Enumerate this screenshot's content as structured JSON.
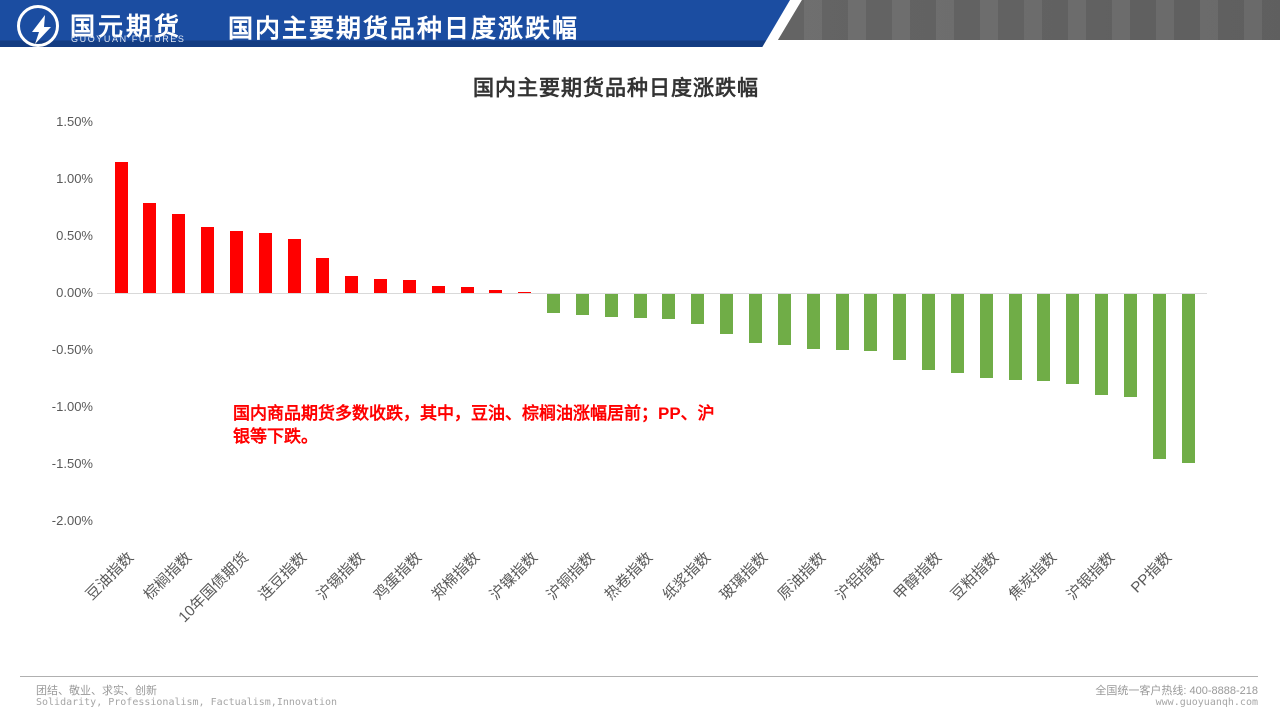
{
  "header": {
    "logo_cn": "国元期货",
    "logo_en": "GUOYUAN FUTURES",
    "bar_title": "国内主要期货品种日度涨跌幅",
    "blue": "#1b4da1",
    "gray": "#6e6e6e"
  },
  "chart_data": {
    "type": "bar",
    "title": "国内主要期货品种日度涨跌幅",
    "y_ticks": [
      "1.50%",
      "1.00%",
      "0.50%",
      "0.00%",
      "-0.50%",
      "-1.00%",
      "-1.50%",
      "-2.00%"
    ],
    "ylim": [
      -2.0,
      1.5
    ],
    "grid": "zero-line-only",
    "label_interval": 2,
    "categories": [
      "豆油指数",
      "棕榈指数",
      "10年国债期货",
      "连豆指数",
      "沪锡指数",
      "鸡蛋指数",
      "郑棉指数",
      "沪镍指数",
      "沪铜指数",
      "热卷指数",
      "纸浆指数",
      "玻璃指数",
      "原油指数",
      "沪铝指数",
      "甲醇指数",
      "豆粕指数",
      "焦炭指数",
      "沪银指数",
      "PP指数"
    ],
    "values_pct": [
      1.15,
      0.79,
      0.69,
      0.58,
      0.54,
      0.53,
      0.47,
      0.31,
      0.15,
      0.12,
      0.11,
      0.06,
      0.05,
      0.03,
      0.01,
      -0.17,
      -0.18,
      -0.2,
      -0.21,
      -0.22,
      -0.26,
      -0.35,
      -0.43,
      -0.45,
      -0.48,
      -0.49,
      -0.5,
      -0.58,
      -0.67,
      -0.69,
      -0.74,
      -0.75,
      -0.76,
      -0.79,
      -0.89,
      -0.9,
      -1.45,
      -1.48
    ],
    "positive_color": "#ff0000",
    "negative_color": "#70ad47"
  },
  "annotation": {
    "color": "#ff0000",
    "lines": [
      "国内商品期货多数收跌，其中，豆油、棕榈油涨幅居前；PP、沪",
      "银等下跌。"
    ]
  },
  "footer": {
    "motto_cn": "团结、敬业、求实、创新",
    "motto_en": "Solidarity, Professionalism, Factualism,Innovation",
    "hotline": "全国统一客户热线: 400-8888-218",
    "website": "www.guoyuanqh.com"
  }
}
